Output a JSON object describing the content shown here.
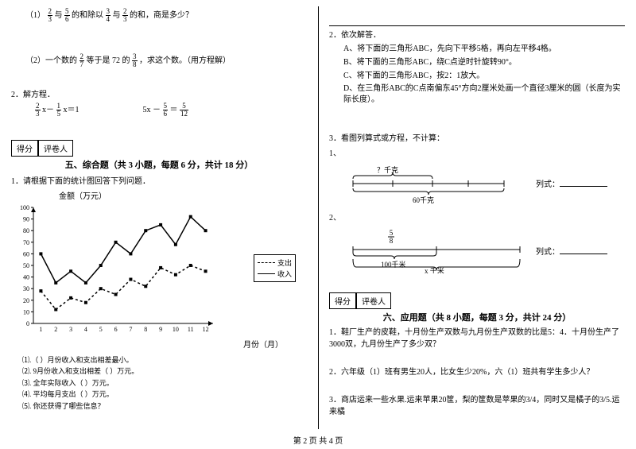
{
  "left": {
    "q1": {
      "prefix": "（1）",
      "f1n": "2",
      "f1d": "3",
      "t1": "与",
      "f2n": "5",
      "f2d": "6",
      "t2": "的和除以",
      "f3n": "3",
      "f3d": "4",
      "t3": "与",
      "f4n": "2",
      "f4d": "3",
      "t4": "的和，商是多少？"
    },
    "q2": {
      "prefix": "（2）一个数的",
      "f1n": "2",
      "f1d": "7",
      "t1": "等于是 72 的",
      "f2n": "3",
      "f2d": "8",
      "t2": "，求这个数。（用方程解）"
    },
    "q3label": "2．解方程．",
    "eq1": {
      "f1n": "2",
      "f1d": "3",
      "mid": " x－",
      "f2n": "1",
      "f2d": "5",
      "tail": " x＝1"
    },
    "eq2": {
      "lhs": "5x －",
      "f1n": "5",
      "f1d": "6",
      "mid": " ＝ ",
      "f2n": "5",
      "f2d": "12"
    },
    "score1": "得分",
    "score2": "评卷人",
    "section5": "五、综合题（共 3 小题，每题 6 分，共计 18 分）",
    "sub1": "1．请根据下面的统计图回答下列问题．",
    "chart": {
      "title": "金额（万元）",
      "xlabel": "月份（月）",
      "ymax": 100,
      "ystep": 10,
      "xcount": 12,
      "ytick_color": "#000",
      "grid": false,
      "income": [
        28,
        12,
        22,
        18,
        30,
        25,
        38,
        32,
        48,
        42,
        50,
        45
      ],
      "expense": [
        60,
        35,
        45,
        35,
        50,
        70,
        60,
        80,
        85,
        68,
        92,
        80
      ],
      "legend_expense": "支出",
      "legend_income": "收入",
      "line_color": "#000",
      "dash_color": "#000",
      "bg": "#ffffff"
    },
    "ql": {
      "a": "⑴.（  ）月份收入和支出相差最小。",
      "b": "⑵. 9月份收入和支出相差（  ）万元。",
      "c": "⑶. 全年实际收入（  ）万元。",
      "d": "⑷. 平均每月支出（  ）万元。",
      "e": "⑸. 你还获得了哪些信息？"
    }
  },
  "right": {
    "hr": true,
    "q2label": "2．依次解答．",
    "qa": "A、将下面的三角形ABC，先向下平移5格，再向左平移4格。",
    "qb": "B、将下面的三角形ABC，绕C点逆时针旋转90°。",
    "qc": "C、将下面的三角形ABC，按2：1放大。",
    "qd": "D、在三角形ABC的C点南偏东45°方向2厘米处画一个直径3厘米的圆（长度为实际长度）。",
    "q3label": "3．看图列算式或方程，不计算：",
    "d1": {
      "num": "1、",
      "top": "？千克",
      "bottom": "60千克",
      "rhs": "列式："
    },
    "d2": {
      "num": "2、",
      "fn": "5",
      "fd": "8",
      "mid": "100千米",
      "bottom": "x 千米",
      "rhs": "列式："
    },
    "score1": "得分",
    "score2": "评卷人",
    "section6": "六、应用题（共 8 小题，每题 3 分，共计 24 分）",
    "a1": "1．鞋厂生产的皮鞋，十月份生产双数与九月份生产双数的比是5：4．十月份生产了3000双，九月份生产了多少双？",
    "a2": "2．六年级（1）班有男生20人，比女生少20%，六（1）班共有学生多少人？",
    "a3": "3．商店运来一些水果.运来苹果20筐，梨的筐数是苹果的3/4，同时又是橘子的3/5.运来橘"
  },
  "footer": "第 2 页 共 4 页"
}
